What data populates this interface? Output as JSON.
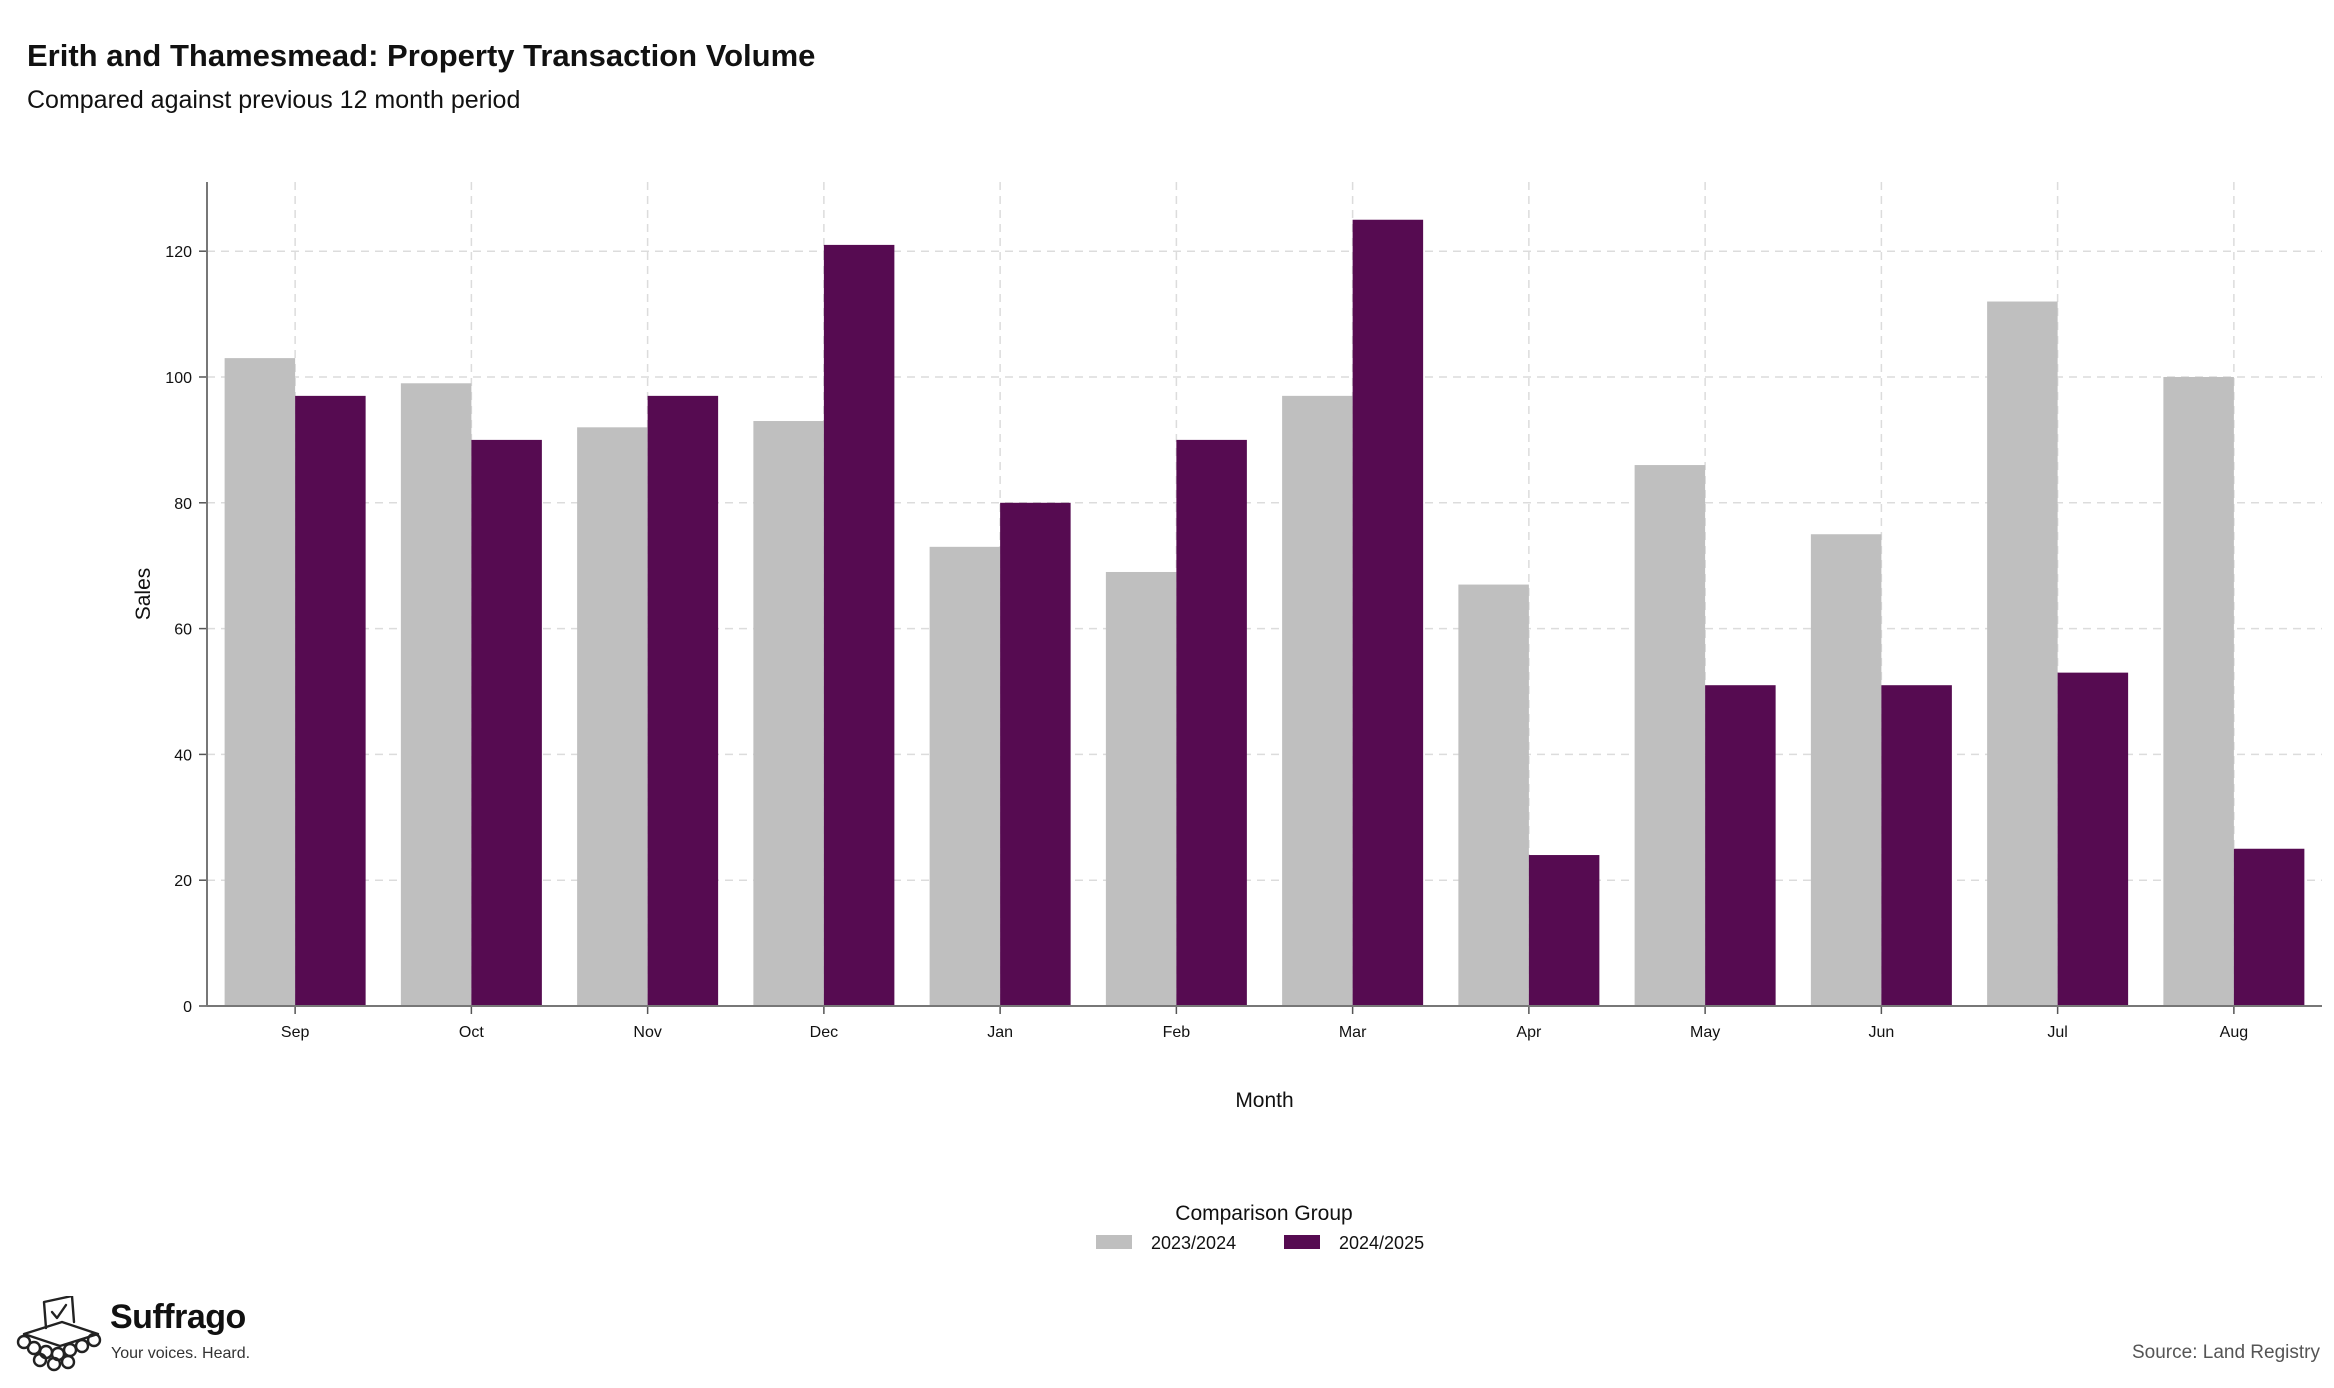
{
  "title": "Erith and Thamesmead: Property Transaction Volume",
  "subtitle": "Compared against previous 12 month period",
  "source": "Source: Land Registry",
  "brand": {
    "name": "Suffrago",
    "tagline": "Your voices. Heard."
  },
  "chart_data": {
    "type": "bar",
    "categories": [
      "Sep",
      "Oct",
      "Nov",
      "Dec",
      "Jan",
      "Feb",
      "Mar",
      "Apr",
      "May",
      "Jun",
      "Jul",
      "Aug"
    ],
    "series": [
      {
        "name": "2023/2024",
        "color": "#bfbfbf",
        "values": [
          103,
          99,
          92,
          93,
          73,
          69,
          97,
          67,
          86,
          75,
          112,
          100
        ]
      },
      {
        "name": "2024/2025",
        "color": "#560b51",
        "values": [
          97,
          90,
          97,
          121,
          80,
          90,
          125,
          24,
          51,
          51,
          53,
          25
        ]
      }
    ],
    "xlabel": "Month",
    "ylabel": "Sales",
    "ylim": [
      0,
      131
    ],
    "yticks": [
      0,
      20,
      40,
      60,
      80,
      100,
      120
    ],
    "legend_title": "Comparison Group",
    "legend_position": "bottom",
    "grid": true
  }
}
